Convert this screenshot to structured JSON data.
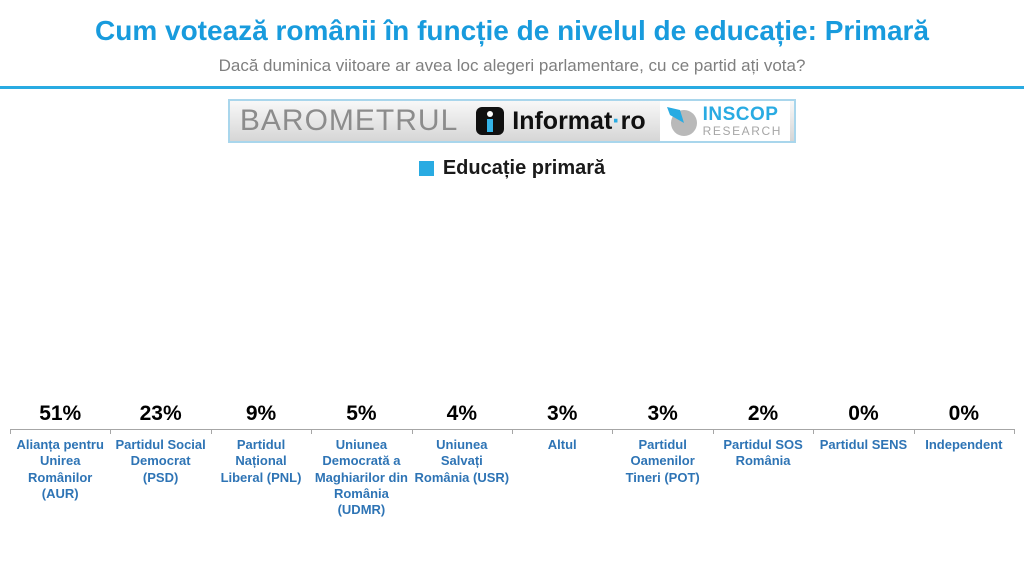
{
  "header": {
    "title": "Cum votează românii în funcție de nivelul de educație: Primară",
    "subtitle": "Dacă duminica viitoare ar avea loc alegeri parlamentare, cu ce partid ați vota?",
    "title_color": "#189BDD",
    "subtitle_color": "#7f7f7f",
    "divider_color": "#29ABE2"
  },
  "banner": {
    "barometrul_text": "BAROMETRUL",
    "informat_name": "Informat",
    "informat_dot": "·",
    "informat_suffix": "ro",
    "inscop_line1": "INSCOP",
    "inscop_line2": "RESEARCH",
    "inscop_blue": "#29ABE2",
    "inscop_gray": "#a6a6a6"
  },
  "legend": {
    "label": "Educație primară",
    "swatch_color": "#29ABE2"
  },
  "chart_data": {
    "type": "bar",
    "title": "Educație primară",
    "categories": [
      "Alianța pentru Unirea Românilor (AUR)",
      "Partidul Social Democrat (PSD)",
      "Partidul Național Liberal (PNL)",
      "Uniunea Democrată a Maghiarilor din România (UDMR)",
      "Uniunea Salvați România (USR)",
      "Altul",
      "Partidul Oamenilor Tineri (POT)",
      "Partidul SOS România",
      "Partidul SENS",
      "Independent"
    ],
    "values": [
      51,
      23,
      9,
      5,
      4,
      3,
      3,
      2,
      0,
      0
    ],
    "value_labels": [
      "51%",
      "23%",
      "9%",
      "5%",
      "4%",
      "3%",
      "3%",
      "2%",
      "0%",
      "0%"
    ],
    "xlabel": "",
    "ylabel": "",
    "ylim": [
      0,
      60
    ],
    "grid": false,
    "legend_position": "top-center",
    "bar_color": "#29ABE2",
    "category_label_color": "#2E74B5",
    "value_label_color": "#000000",
    "axis_line_color": "#a6a6a6"
  }
}
